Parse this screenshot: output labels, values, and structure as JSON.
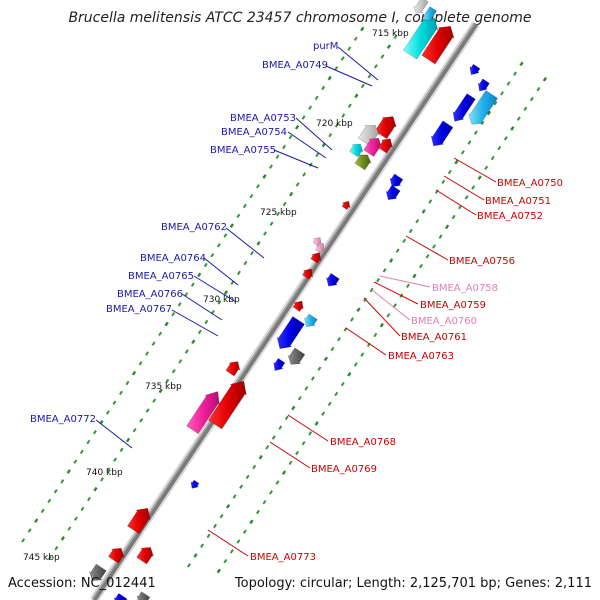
{
  "title": "Brucella melitensis ATCC 23457 chromosome I, complete genome",
  "footer": {
    "accession": "Accession: NC_012441",
    "topology": "Topology: circular; Length: 2,125,701 bp; Genes: 2,111"
  },
  "colors": {
    "forward_label": "#1a1aa8",
    "reverse_label": "#cc0000",
    "pale_label": "#e080b0",
    "backbone": "#7a7a7a",
    "tick": "#2a8a2a"
  },
  "scale_ticks": [
    {
      "label": "715 kbp"
    },
    {
      "label": "720 kbp"
    },
    {
      "label": "725 kbp"
    },
    {
      "label": "730 kbp"
    },
    {
      "label": "735 kbp"
    },
    {
      "label": "740 kbp"
    },
    {
      "label": "745 kbp"
    }
  ],
  "forward_labels": [
    {
      "text": "purM"
    },
    {
      "text": "BMEA_A0749"
    },
    {
      "text": "BMEA_A0753"
    },
    {
      "text": "BMEA_A0754"
    },
    {
      "text": "BMEA_A0755"
    },
    {
      "text": "BMEA_A0762"
    },
    {
      "text": "BMEA_A0764"
    },
    {
      "text": "BMEA_A0765"
    },
    {
      "text": "BMEA_A0766"
    },
    {
      "text": "BMEA_A0767"
    },
    {
      "text": "BMEA_A0772"
    }
  ],
  "reverse_labels": [
    {
      "text": "BMEA_A0750"
    },
    {
      "text": "BMEA_A0751"
    },
    {
      "text": "BMEA_A0752"
    },
    {
      "text": "BMEA_A0756"
    },
    {
      "text": "BMEA_A0758"
    },
    {
      "text": "BMEA_A0759"
    },
    {
      "text": "BMEA_A0760"
    },
    {
      "text": "BMEA_A0761"
    },
    {
      "text": "BMEA_A0763"
    },
    {
      "text": "BMEA_A0768"
    },
    {
      "text": "BMEA_A0769"
    },
    {
      "text": "BMEA_A0773"
    }
  ]
}
